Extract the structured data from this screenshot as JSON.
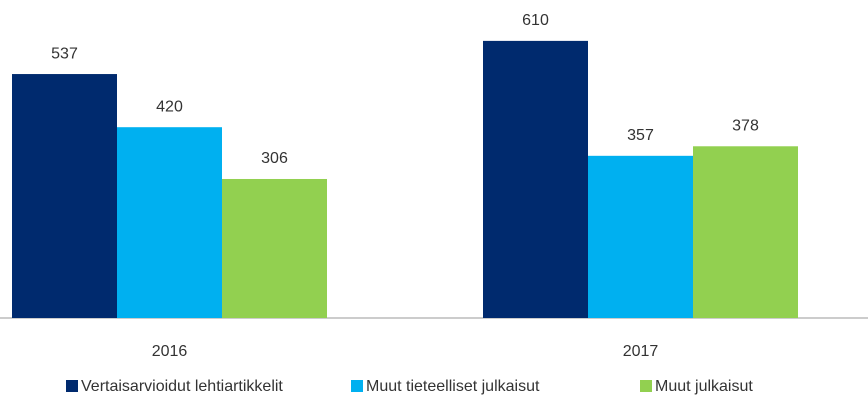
{
  "chart_data": {
    "type": "bar",
    "categories": [
      "2016",
      "2017"
    ],
    "series": [
      {
        "name": "Vertaisarvioidut lehtiartikkelit",
        "color": "#002a6e",
        "values": [
          537,
          610
        ]
      },
      {
        "name": "Muut tieteelliset julkaisut",
        "color": "#00b0f0",
        "values": [
          420,
          357
        ]
      },
      {
        "name": "Muut julkaisut",
        "color": "#92d050",
        "values": [
          306,
          378
        ]
      }
    ],
    "ylim": [
      0,
      700
    ],
    "legend": "bottom"
  }
}
